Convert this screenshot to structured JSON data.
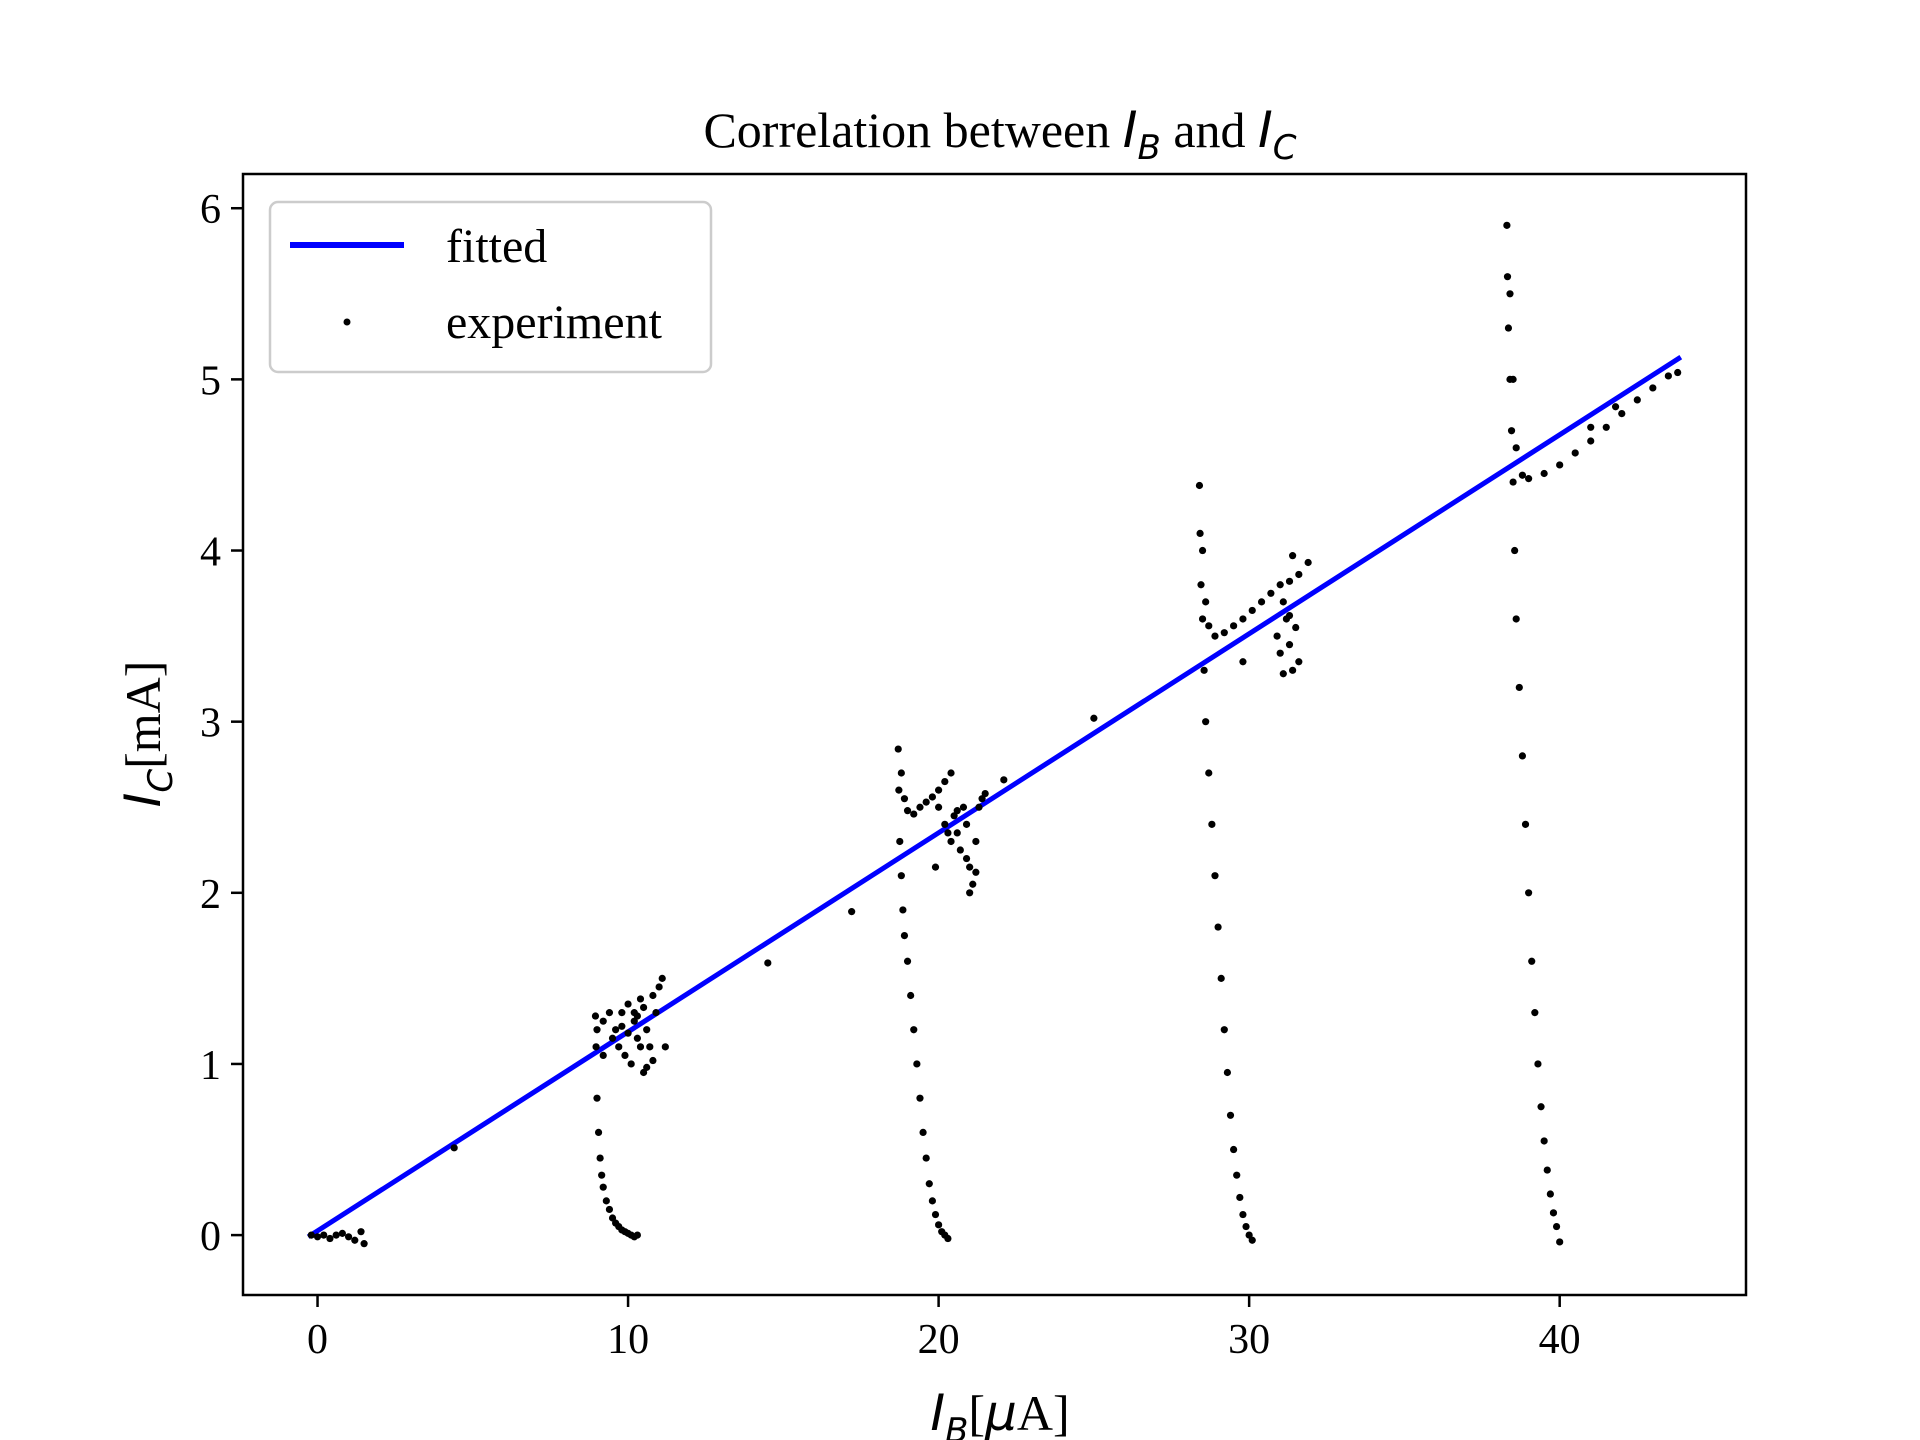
{
  "chart_data": {
    "type": "scatter",
    "title": {
      "prefix": "Correlation between ",
      "var1": "I",
      "var1_sub": "B",
      "middle": " and ",
      "var2": "I",
      "var2_sub": "C"
    },
    "xlabel": {
      "var": "I",
      "sub": "B",
      "unit_open": "[",
      "unit_mu": "μ",
      "unit_rest": "A]"
    },
    "ylabel": {
      "var": "I",
      "sub": "C",
      "unit": "[mA]"
    },
    "xlim": [
      -2.4,
      46
    ],
    "ylim": [
      -0.35,
      6.2
    ],
    "xticks": [
      0,
      10,
      20,
      30,
      40
    ],
    "yticks": [
      0,
      1,
      2,
      3,
      4,
      5,
      6
    ],
    "grid": false,
    "legend_position": "upper-left",
    "legend": [
      {
        "label": "fitted",
        "kind": "line",
        "color": "#0000ff"
      },
      {
        "label": "experiment",
        "kind": "point",
        "color": "#000000"
      }
    ],
    "series": [
      {
        "name": "fitted",
        "kind": "line",
        "color": "#0000ff",
        "x": [
          -0.3,
          43.9
        ],
        "y": [
          -0.01,
          5.13
        ]
      },
      {
        "name": "experiment",
        "kind": "scatter",
        "color": "#000000",
        "points": [
          [
            -0.2,
            0.0
          ],
          [
            0.0,
            -0.01
          ],
          [
            0.2,
            0.0
          ],
          [
            0.4,
            -0.02
          ],
          [
            0.6,
            0.0
          ],
          [
            0.8,
            0.01
          ],
          [
            1.0,
            -0.01
          ],
          [
            1.2,
            -0.03
          ],
          [
            1.4,
            0.02
          ],
          [
            1.5,
            -0.05
          ],
          [
            4.4,
            0.51
          ],
          [
            8.95,
            1.28
          ],
          [
            8.97,
            1.1
          ],
          [
            9.0,
            0.8
          ],
          [
            9.05,
            0.6
          ],
          [
            9.1,
            0.45
          ],
          [
            9.15,
            0.35
          ],
          [
            9.2,
            0.28
          ],
          [
            9.3,
            0.2
          ],
          [
            9.4,
            0.15
          ],
          [
            9.5,
            0.1
          ],
          [
            9.6,
            0.07
          ],
          [
            9.7,
            0.05
          ],
          [
            9.8,
            0.03
          ],
          [
            9.9,
            0.02
          ],
          [
            10.0,
            0.01
          ],
          [
            10.1,
            0.0
          ],
          [
            10.2,
            -0.01
          ],
          [
            10.3,
            0.0
          ],
          [
            9.0,
            1.2
          ],
          [
            9.2,
            1.25
          ],
          [
            9.4,
            1.3
          ],
          [
            9.5,
            1.15
          ],
          [
            9.6,
            1.2
          ],
          [
            9.7,
            1.1
          ],
          [
            9.8,
            1.3
          ],
          [
            9.9,
            1.05
          ],
          [
            10.0,
            1.35
          ],
          [
            10.1,
            1.0
          ],
          [
            10.2,
            1.25
          ],
          [
            10.3,
            1.15
          ],
          [
            10.4,
            1.38
          ],
          [
            10.5,
            0.95
          ],
          [
            10.6,
            1.2
          ],
          [
            10.7,
            1.1
          ],
          [
            10.8,
            1.4
          ],
          [
            10.9,
            1.3
          ],
          [
            11.0,
            1.45
          ],
          [
            11.1,
            1.5
          ],
          [
            10.2,
            1.3
          ],
          [
            10.4,
            1.1
          ],
          [
            10.6,
            0.98
          ],
          [
            10.8,
            1.02
          ],
          [
            10.0,
            1.18
          ],
          [
            9.8,
            1.22
          ],
          [
            10.3,
            1.28
          ],
          [
            10.5,
            1.33
          ],
          [
            9.2,
            1.05
          ],
          [
            11.2,
            1.1
          ],
          [
            14.5,
            1.59
          ],
          [
            17.2,
            1.89
          ],
          [
            18.7,
            2.84
          ],
          [
            18.72,
            2.6
          ],
          [
            18.75,
            2.3
          ],
          [
            18.8,
            2.1
          ],
          [
            18.85,
            1.9
          ],
          [
            18.9,
            1.75
          ],
          [
            19.0,
            1.6
          ],
          [
            19.1,
            1.4
          ],
          [
            19.2,
            1.2
          ],
          [
            19.3,
            1.0
          ],
          [
            19.4,
            0.8
          ],
          [
            19.5,
            0.6
          ],
          [
            19.6,
            0.45
          ],
          [
            19.7,
            0.3
          ],
          [
            19.8,
            0.2
          ],
          [
            19.9,
            0.12
          ],
          [
            20.0,
            0.06
          ],
          [
            20.1,
            0.02
          ],
          [
            20.2,
            0.0
          ],
          [
            20.3,
            -0.02
          ],
          [
            18.8,
            2.7
          ],
          [
            18.9,
            2.55
          ],
          [
            19.0,
            2.48
          ],
          [
            19.2,
            2.46
          ],
          [
            19.4,
            2.5
          ],
          [
            19.6,
            2.53
          ],
          [
            19.8,
            2.56
          ],
          [
            20.0,
            2.6
          ],
          [
            20.2,
            2.65
          ],
          [
            20.4,
            2.7
          ],
          [
            20.0,
            2.5
          ],
          [
            20.2,
            2.4
          ],
          [
            20.4,
            2.3
          ],
          [
            20.5,
            2.45
          ],
          [
            20.6,
            2.35
          ],
          [
            20.7,
            2.25
          ],
          [
            20.8,
            2.5
          ],
          [
            20.9,
            2.4
          ],
          [
            21.0,
            2.15
          ],
          [
            21.1,
            2.05
          ],
          [
            21.2,
            2.3
          ],
          [
            21.3,
            2.5
          ],
          [
            21.4,
            2.55
          ],
          [
            21.5,
            2.58
          ],
          [
            20.3,
            2.35
          ],
          [
            20.9,
            2.2
          ],
          [
            21.0,
            2.0
          ],
          [
            21.2,
            2.12
          ],
          [
            20.6,
            2.48
          ],
          [
            19.9,
            2.15
          ],
          [
            22.1,
            2.66
          ],
          [
            25.0,
            3.02
          ],
          [
            28.4,
            4.38
          ],
          [
            28.42,
            4.1
          ],
          [
            28.45,
            3.8
          ],
          [
            28.5,
            3.6
          ],
          [
            28.55,
            3.3
          ],
          [
            28.6,
            3.0
          ],
          [
            28.7,
            2.7
          ],
          [
            28.8,
            2.4
          ],
          [
            28.9,
            2.1
          ],
          [
            29.0,
            1.8
          ],
          [
            29.1,
            1.5
          ],
          [
            29.2,
            1.2
          ],
          [
            29.3,
            0.95
          ],
          [
            29.4,
            0.7
          ],
          [
            29.5,
            0.5
          ],
          [
            29.6,
            0.35
          ],
          [
            29.7,
            0.22
          ],
          [
            29.8,
            0.12
          ],
          [
            29.9,
            0.05
          ],
          [
            30.0,
            0.0
          ],
          [
            30.1,
            -0.03
          ],
          [
            28.5,
            4.0
          ],
          [
            28.6,
            3.7
          ],
          [
            28.7,
            3.56
          ],
          [
            28.9,
            3.5
          ],
          [
            29.2,
            3.52
          ],
          [
            29.5,
            3.56
          ],
          [
            29.8,
            3.6
          ],
          [
            30.1,
            3.65
          ],
          [
            30.4,
            3.7
          ],
          [
            30.7,
            3.75
          ],
          [
            31.0,
            3.8
          ],
          [
            31.3,
            3.82
          ],
          [
            31.6,
            3.86
          ],
          [
            31.9,
            3.93
          ],
          [
            30.9,
            3.5
          ],
          [
            31.0,
            3.4
          ],
          [
            31.1,
            3.7
          ],
          [
            31.2,
            3.6
          ],
          [
            31.3,
            3.45
          ],
          [
            31.4,
            3.3
          ],
          [
            31.5,
            3.55
          ],
          [
            31.6,
            3.35
          ],
          [
            31.4,
            3.97
          ],
          [
            29.8,
            3.35
          ],
          [
            31.1,
            3.28
          ],
          [
            31.3,
            3.62
          ],
          [
            38.3,
            5.9
          ],
          [
            38.32,
            5.6
          ],
          [
            38.35,
            5.3
          ],
          [
            38.4,
            5.0
          ],
          [
            38.45,
            4.7
          ],
          [
            38.5,
            4.4
          ],
          [
            38.55,
            4.0
          ],
          [
            38.6,
            3.6
          ],
          [
            38.7,
            3.2
          ],
          [
            38.8,
            2.8
          ],
          [
            38.9,
            2.4
          ],
          [
            39.0,
            2.0
          ],
          [
            39.1,
            1.6
          ],
          [
            39.2,
            1.3
          ],
          [
            39.3,
            1.0
          ],
          [
            39.4,
            0.75
          ],
          [
            39.5,
            0.55
          ],
          [
            39.6,
            0.38
          ],
          [
            39.7,
            0.24
          ],
          [
            39.8,
            0.13
          ],
          [
            39.9,
            0.05
          ],
          [
            40.0,
            -0.04
          ],
          [
            38.4,
            5.5
          ],
          [
            38.5,
            5.0
          ],
          [
            38.6,
            4.6
          ],
          [
            38.8,
            4.44
          ],
          [
            39.0,
            4.42
          ],
          [
            39.5,
            4.45
          ],
          [
            40.0,
            4.5
          ],
          [
            40.5,
            4.57
          ],
          [
            41.0,
            4.64
          ],
          [
            41.5,
            4.72
          ],
          [
            42.0,
            4.8
          ],
          [
            42.5,
            4.88
          ],
          [
            43.0,
            4.95
          ],
          [
            43.5,
            5.02
          ],
          [
            43.8,
            5.04
          ],
          [
            41.0,
            4.72
          ],
          [
            41.8,
            4.84
          ]
        ]
      }
    ]
  }
}
